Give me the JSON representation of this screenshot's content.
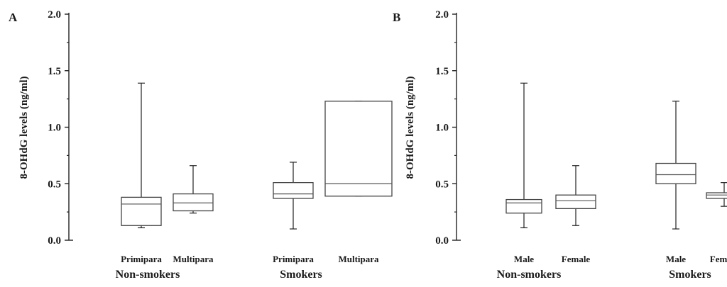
{
  "chart_data": [
    {
      "panel": "A",
      "type": "box",
      "ylabel": "8-OHdG levels  (ng/ml)",
      "ylim": [
        0.0,
        2.0
      ],
      "yticks": [
        "0.0",
        "0.5",
        "1.0",
        "1.5",
        "2.0"
      ],
      "groups": [
        "Non-smokers",
        "Smokers"
      ],
      "categories": [
        "Primipara",
        "Multipara",
        "Primipara",
        "Multipara"
      ],
      "boxes": [
        {
          "category": "Primipara",
          "group": "Non-smokers",
          "min": 0.11,
          "q1": 0.13,
          "median": 0.32,
          "q3": 0.38,
          "max": 1.39
        },
        {
          "category": "Multipara",
          "group": "Non-smokers",
          "min": 0.24,
          "q1": 0.26,
          "median": 0.33,
          "q3": 0.41,
          "max": 0.66
        },
        {
          "category": "Primipara",
          "group": "Smokers",
          "min": 0.1,
          "q1": 0.37,
          "median": 0.41,
          "q3": 0.51,
          "max": 0.69
        },
        {
          "category": "Multipara",
          "group": "Smokers",
          "min": 0.39,
          "q1": 0.39,
          "median": 0.5,
          "q3": 1.23,
          "max": 1.23
        }
      ]
    },
    {
      "panel": "B",
      "type": "box",
      "ylabel": "8-OHdG levels  (ng/ml)",
      "ylim": [
        0.0,
        2.0
      ],
      "yticks": [
        "0.0",
        "0.5",
        "1.0",
        "1.5",
        "2.0"
      ],
      "groups": [
        "Non-smokers",
        "Smokers"
      ],
      "categories": [
        "Male",
        "Female",
        "Male",
        "Female"
      ],
      "boxes": [
        {
          "category": "Male",
          "group": "Non-smokers",
          "min": 0.11,
          "q1": 0.24,
          "median": 0.33,
          "q3": 0.36,
          "max": 1.39
        },
        {
          "category": "Female",
          "group": "Non-smokers",
          "min": 0.13,
          "q1": 0.28,
          "median": 0.35,
          "q3": 0.4,
          "max": 0.66
        },
        {
          "category": "Male",
          "group": "Smokers",
          "min": 0.1,
          "q1": 0.5,
          "median": 0.58,
          "q3": 0.68,
          "max": 1.23
        },
        {
          "category": "Female",
          "group": "Smokers",
          "min": 0.3,
          "q1": 0.37,
          "median": 0.4,
          "q3": 0.42,
          "max": 0.51
        }
      ]
    }
  ]
}
